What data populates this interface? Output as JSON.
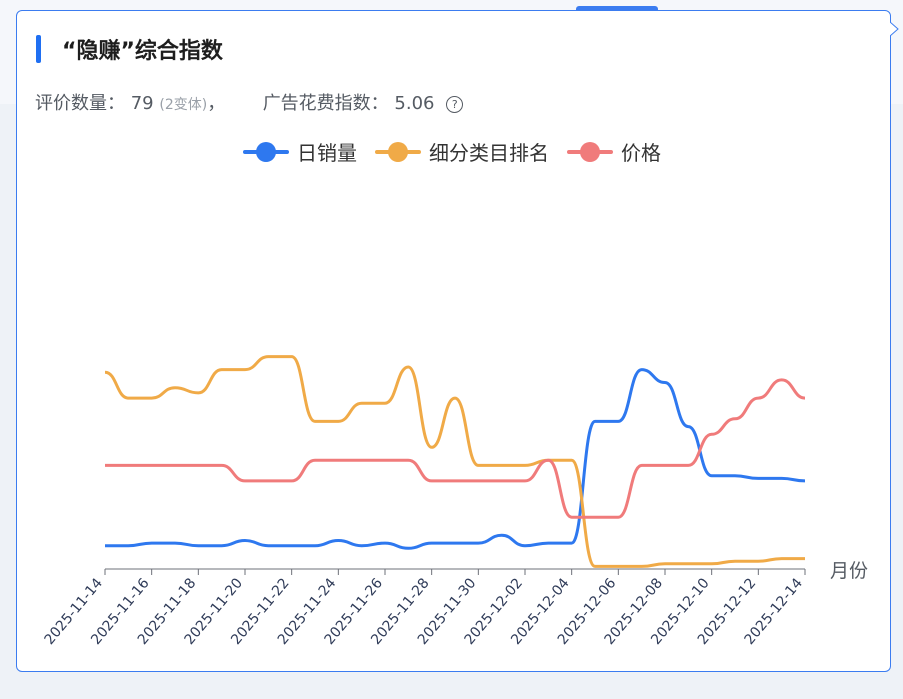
{
  "card": {
    "title": "“隐赚”综合指数",
    "review_label": "评价数量：",
    "review_value": "79",
    "variants": "(2变体)",
    "comma": "，",
    "ad_label": "广告花费指数：",
    "ad_value": "5.06",
    "help_icon": "question-circle-icon"
  },
  "chart_data": {
    "type": "line",
    "xlabel": "月份",
    "x_tick_labels": [
      "2025-11-14",
      "2025-11-16",
      "2025-11-18",
      "2025-11-20",
      "2025-11-22",
      "2025-11-24",
      "2025-11-26",
      "2025-11-28",
      "2025-11-30",
      "2025-12-02",
      "2025-12-04",
      "2025-12-06",
      "2025-12-08",
      "2025-12-10",
      "2025-12-12",
      "2025-12-14"
    ],
    "x_days": [
      0,
      1,
      2,
      3,
      4,
      5,
      6,
      7,
      8,
      9,
      10,
      11,
      12,
      13,
      14,
      15,
      16,
      17,
      18,
      19,
      20,
      21,
      22,
      23,
      24,
      25,
      26,
      27,
      28,
      29,
      30
    ],
    "ylim": [
      0,
      100
    ],
    "y_axis_visible": false,
    "grid": false,
    "legend_position": "top-center",
    "series": [
      {
        "name": "日销量",
        "color": "#2e78ef",
        "values": [
          9,
          9,
          10,
          10,
          9,
          9,
          11,
          9,
          9,
          9,
          11,
          9,
          10,
          8,
          10,
          10,
          10,
          13,
          9,
          10,
          10,
          57,
          57,
          77,
          72,
          55,
          36,
          36,
          35,
          35,
          34
        ]
      },
      {
        "name": "细分类目排名",
        "color": "#f0aa47",
        "values": [
          76,
          66,
          66,
          70,
          68,
          77,
          77,
          82,
          82,
          57,
          57,
          64,
          64,
          78,
          47,
          66,
          40,
          40,
          40,
          42,
          42,
          1,
          1,
          1,
          2,
          2,
          2,
          3,
          3,
          4,
          4
        ]
      },
      {
        "name": "价格",
        "color": "#f07b7b",
        "values": [
          40,
          40,
          40,
          40,
          40,
          40,
          34,
          34,
          34,
          42,
          42,
          42,
          42,
          42,
          34,
          34,
          34,
          34,
          34,
          42,
          20,
          20,
          20,
          40,
          40,
          40,
          52,
          58,
          66,
          73,
          66
        ]
      }
    ]
  }
}
